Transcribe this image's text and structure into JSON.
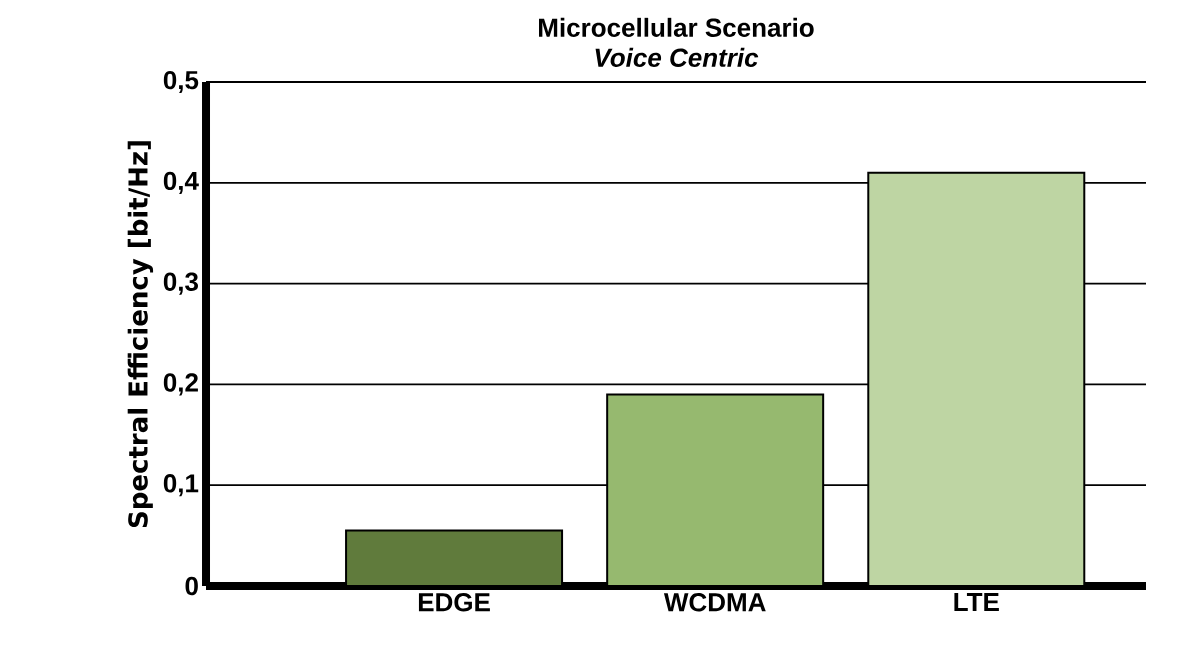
{
  "chart_data": {
    "type": "bar",
    "title": "Microcellular Scenario",
    "subtitle": "Voice Centric",
    "ylabel": "Spectral Efficiency [bit/Hz]",
    "categories": [
      "EDGE",
      "WCDMA",
      "LTE"
    ],
    "values": [
      0.055,
      0.19,
      0.41
    ],
    "colors": [
      "#607b3c",
      "#96b96f",
      "#bed5a3"
    ],
    "ylim": [
      0,
      0.5
    ],
    "yticks": [
      0,
      {
        "value": 0.1,
        "label": "0,1"
      },
      {
        "value": 0.2,
        "label": "0,2"
      },
      {
        "value": 0.3,
        "label": "0,3"
      },
      {
        "value": 0.4,
        "label": "0,4"
      },
      {
        "value": 0.5,
        "label": "0,5"
      }
    ],
    "grid": "y"
  }
}
